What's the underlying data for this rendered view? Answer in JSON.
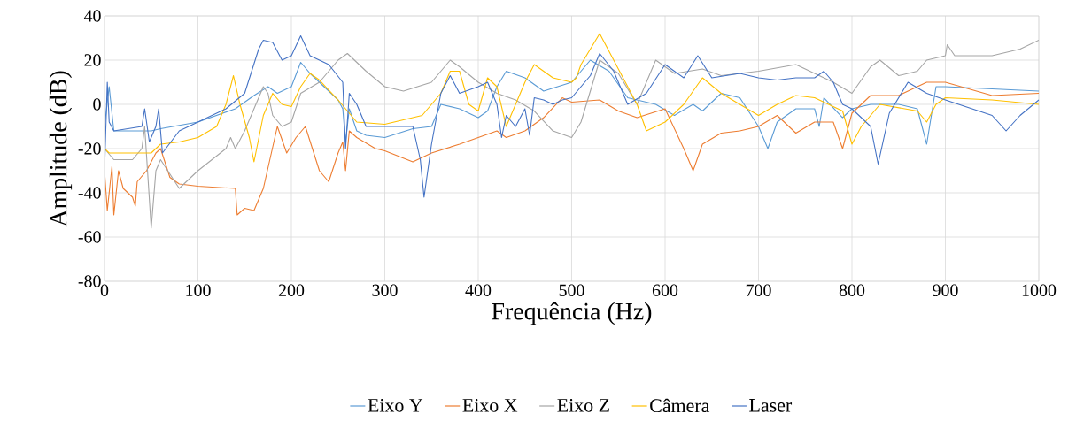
{
  "chart_data": {
    "type": "line",
    "xlabel": "Frequência (Hz)",
    "ylabel": "Amplitude (dB)",
    "xlim": [
      0,
      1000
    ],
    "xticks": [
      0,
      100,
      200,
      300,
      400,
      500,
      600,
      700,
      800,
      900,
      1000
    ],
    "ylim": [
      -80,
      40
    ],
    "yticks": [
      -80,
      -60,
      -40,
      -20,
      0,
      20,
      40
    ],
    "grid": true,
    "legend": "bottom",
    "marker": "none",
    "line_style": "solid",
    "series": [
      {
        "name": "Eixo Y",
        "color": "#5b9bd5",
        "x": [
          0,
          5,
          10,
          40,
          50,
          60,
          100,
          140,
          160,
          175,
          185,
          200,
          210,
          220,
          230,
          250,
          255,
          258,
          262,
          270,
          280,
          300,
          330,
          350,
          360,
          380,
          400,
          410,
          420,
          430,
          450,
          470,
          500,
          520,
          540,
          560,
          590,
          610,
          630,
          640,
          660,
          680,
          700,
          710,
          720,
          740,
          760,
          765,
          770,
          790,
          800,
          820,
          850,
          870,
          880,
          890,
          900,
          950,
          1000
        ],
        "values": [
          -10,
          8,
          -12,
          -12,
          -12,
          -11,
          -8,
          -2,
          4,
          8,
          5,
          8,
          19,
          14,
          10,
          2,
          -2,
          -17,
          -2,
          -12,
          -14,
          -15,
          -11,
          -10,
          0,
          -2,
          -6,
          -3,
          8,
          15,
          12,
          6,
          10,
          20,
          15,
          3,
          0,
          -5,
          0,
          -3,
          5,
          3,
          -10,
          -20,
          -8,
          -2,
          -2,
          -10,
          3,
          -6,
          -2,
          0,
          0,
          -2,
          -18,
          8,
          8,
          7,
          6
        ]
      },
      {
        "name": "Eixo X",
        "color": "#ed7d31",
        "x": [
          0,
          3,
          8,
          10,
          15,
          20,
          30,
          33,
          35,
          45,
          55,
          60,
          70,
          80,
          100,
          140,
          142,
          150,
          160,
          170,
          185,
          195,
          205,
          215,
          230,
          240,
          250,
          255,
          258,
          262,
          270,
          290,
          300,
          330,
          350,
          380,
          420,
          430,
          450,
          470,
          490,
          500,
          530,
          550,
          570,
          600,
          620,
          630,
          640,
          660,
          680,
          700,
          720,
          740,
          760,
          780,
          790,
          800,
          820,
          850,
          880,
          900,
          950,
          1000
        ],
        "values": [
          -30,
          -48,
          -28,
          -50,
          -30,
          -38,
          -42,
          -46,
          -35,
          -30,
          -22,
          -20,
          -33,
          -36,
          -37,
          -38,
          -50,
          -47,
          -48,
          -38,
          -10,
          -22,
          -15,
          -10,
          -30,
          -35,
          -22,
          -17,
          -30,
          -12,
          -15,
          -20,
          -21,
          -26,
          -22,
          -18,
          -12,
          -15,
          -12,
          -6,
          3,
          1,
          2,
          -3,
          -6,
          -2,
          -20,
          -30,
          -18,
          -13,
          -12,
          -10,
          -5,
          -13,
          -8,
          -8,
          -20,
          -4,
          4,
          4,
          10,
          10,
          4,
          5
        ]
      },
      {
        "name": "Eixo Z",
        "color": "#a5a5a5",
        "x": [
          0,
          10,
          30,
          40,
          43,
          50,
          55,
          60,
          80,
          100,
          130,
          135,
          140,
          150,
          170,
          175,
          180,
          190,
          200,
          210,
          230,
          250,
          260,
          280,
          300,
          320,
          350,
          370,
          380,
          400,
          420,
          440,
          460,
          480,
          500,
          510,
          530,
          550,
          570,
          590,
          610,
          640,
          660,
          700,
          740,
          760,
          780,
          800,
          820,
          830,
          850,
          870,
          880,
          900,
          902,
          910,
          950,
          980,
          1000
        ],
        "values": [
          -20,
          -25,
          -25,
          -20,
          -10,
          -56,
          -30,
          -25,
          -38,
          -30,
          -20,
          -15,
          -20,
          -12,
          8,
          5,
          -5,
          -10,
          -8,
          5,
          10,
          20,
          23,
          15,
          8,
          6,
          10,
          20,
          17,
          10,
          5,
          2,
          -3,
          -12,
          -15,
          -8,
          20,
          14,
          0,
          20,
          14,
          16,
          13,
          15,
          18,
          14,
          10,
          5,
          17,
          20,
          13,
          15,
          20,
          22,
          27,
          22,
          22,
          25,
          29
        ]
      },
      {
        "name": "Câmera",
        "color": "#ffc000",
        "x": [
          0,
          5,
          40,
          50,
          60,
          80,
          100,
          120,
          130,
          138,
          145,
          155,
          160,
          170,
          180,
          190,
          200,
          210,
          220,
          230,
          250,
          270,
          300,
          340,
          360,
          370,
          380,
          390,
          400,
          410,
          420,
          430,
          440,
          450,
          460,
          470,
          480,
          500,
          505,
          510,
          530,
          545,
          570,
          580,
          600,
          620,
          640,
          660,
          680,
          700,
          720,
          740,
          760,
          790,
          800,
          810,
          830,
          870,
          880,
          890,
          900,
          950,
          1000
        ],
        "values": [
          -20,
          -22,
          -22,
          -22,
          -18,
          -17,
          -15,
          -10,
          0,
          13,
          0,
          -15,
          -26,
          -5,
          5,
          0,
          -1,
          8,
          14,
          11,
          2,
          -8,
          -9,
          -5,
          5,
          15,
          15,
          0,
          -3,
          12,
          8,
          -10,
          0,
          10,
          18,
          15,
          12,
          10,
          12,
          18,
          32,
          20,
          0,
          -12,
          -8,
          0,
          12,
          5,
          0,
          -5,
          0,
          4,
          3,
          -3,
          -18,
          -10,
          0,
          -3,
          -8,
          0,
          3,
          2,
          0
        ]
      },
      {
        "name": "Laser",
        "color": "#4472c4",
        "x": [
          0,
          3,
          5,
          10,
          40,
          43,
          48,
          55,
          58,
          62,
          80,
          100,
          130,
          150,
          165,
          170,
          180,
          190,
          200,
          210,
          220,
          240,
          255,
          258,
          262,
          270,
          280,
          300,
          330,
          338,
          342,
          350,
          360,
          370,
          380,
          400,
          410,
          420,
          425,
          430,
          440,
          450,
          455,
          460,
          470,
          480,
          490,
          500,
          520,
          530,
          545,
          560,
          580,
          600,
          620,
          635,
          650,
          680,
          700,
          720,
          740,
          760,
          770,
          780,
          790,
          800,
          820,
          828,
          840,
          860,
          880,
          900,
          950,
          965,
          980,
          1000
        ],
        "values": [
          -30,
          10,
          -8,
          -12,
          -10,
          -2,
          -17,
          -10,
          -2,
          -22,
          -12,
          -8,
          -2,
          5,
          25,
          29,
          28,
          20,
          22,
          31,
          22,
          18,
          10,
          -20,
          5,
          0,
          -10,
          -10,
          -10,
          -25,
          -42,
          -18,
          5,
          13,
          5,
          8,
          10,
          0,
          -15,
          -5,
          -10,
          -2,
          -14,
          3,
          2,
          0,
          2,
          3,
          13,
          23,
          15,
          0,
          5,
          18,
          12,
          22,
          12,
          14,
          12,
          11,
          12,
          12,
          15,
          10,
          0,
          -2,
          -10,
          -27,
          -4,
          10,
          5,
          2,
          -5,
          -12,
          -5,
          2
        ]
      }
    ]
  }
}
